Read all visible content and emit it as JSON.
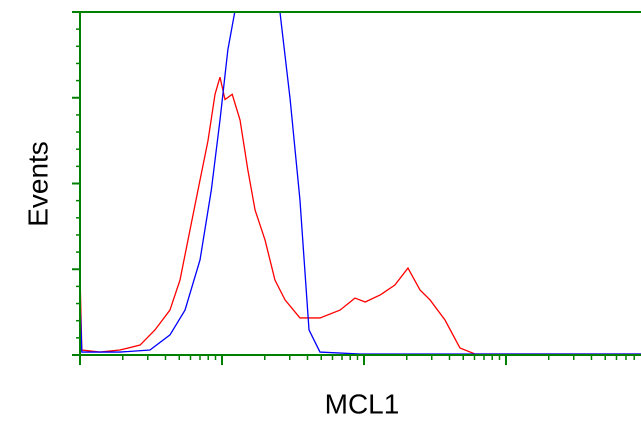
{
  "chart_data": {
    "type": "line",
    "ylabel": "Events",
    "xlabel": "MCL1",
    "xscale": "log",
    "xlim": [
      1,
      8930
    ],
    "xticks": [
      1,
      10,
      100,
      1000
    ],
    "xminorticks": [
      2,
      3,
      4,
      5,
      6,
      7,
      8,
      9,
      20,
      30,
      40,
      50,
      60,
      70,
      80,
      90,
      200,
      300,
      400,
      500,
      600,
      700,
      800,
      900,
      2000,
      3000,
      4000,
      5000,
      6000,
      7000,
      8000
    ],
    "ylim": [
      0,
      200
    ],
    "yticks": [
      0,
      50,
      100,
      150,
      200
    ],
    "yminorticks": [
      10,
      20,
      30,
      40,
      60,
      70,
      80,
      90,
      110,
      120,
      130,
      140,
      160,
      170,
      180,
      190
    ],
    "axis_color": "#008000",
    "series": [
      {
        "color": "#ff0000",
        "x": [
          1,
          1.03,
          1.38,
          1.91,
          2.65,
          3.37,
          4.3,
          5.06,
          5.95,
          7.0,
          7.97,
          8.93,
          9.68,
          10.5,
          11.8,
          13.4,
          15.2,
          17.1,
          20.1,
          23.6,
          27.8,
          35.4,
          49.0,
          67.8,
          86.4,
          102,
          130,
          165,
          204,
          248,
          292,
          372,
          474,
          605,
          907,
          2040,
          8930
        ],
        "values": [
          46.6,
          2.9,
          1.7,
          2.9,
          5.8,
          14.6,
          26.2,
          43.7,
          72.9,
          102,
          125,
          152,
          162,
          149,
          152,
          137,
          108,
          84.5,
          67,
          43.7,
          32.1,
          21.6,
          21.6,
          26.2,
          33.2,
          30.9,
          35,
          40.8,
          50.7,
          37.9,
          32.1,
          20.4,
          4.1,
          0.6,
          0.6,
          0.6,
          0.6
        ]
      },
      {
        "color": "#0000ff",
        "x": [
          1,
          1.03,
          1.91,
          3.11,
          4.3,
          5.49,
          7.0,
          8.41,
          9.68,
          11.0,
          12.3,
          15.8,
          20.1,
          25.6,
          30.2,
          35.4,
          41.0,
          49.0,
          93.8,
          8930
        ],
        "values": [
          32.1,
          1.7,
          1.7,
          2.9,
          11.7,
          26.2,
          55.4,
          96.2,
          137,
          178,
          200,
          235,
          240,
          200,
          149,
          90.4,
          14.6,
          1.7,
          0.6,
          0.6
        ]
      }
    ]
  }
}
